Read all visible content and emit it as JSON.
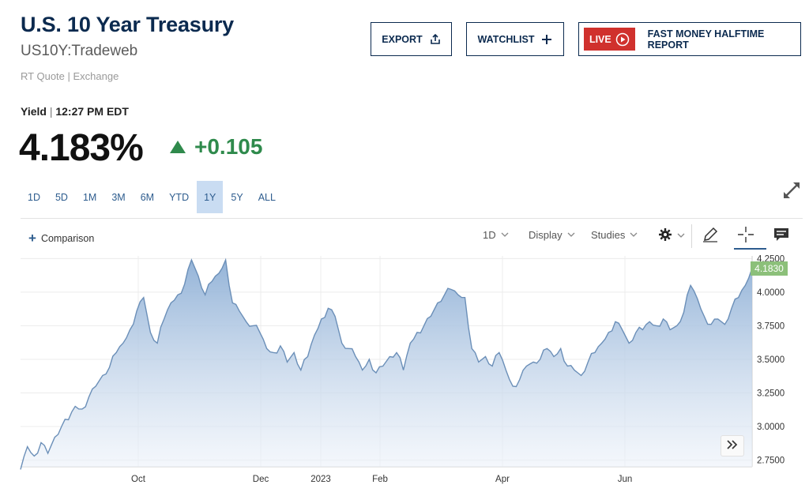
{
  "header": {
    "title": "U.S. 10 Year Treasury",
    "symbol": "US10Y:Tradeweb",
    "quote_source": "RT Quote | Exchange"
  },
  "actions": {
    "export_label": "EXPORT",
    "watchlist_label": "WATCHLIST",
    "live_label": "LIVE",
    "live_show": "FAST MONEY HALFTIME REPORT",
    "live_color": "#d0312d"
  },
  "quote": {
    "yield_label": "Yield",
    "time": "12:27 PM EDT",
    "price": "4.183%",
    "change": "+0.105",
    "change_color": "#2f8a4c"
  },
  "ranges": [
    {
      "label": "1D",
      "active": false
    },
    {
      "label": "5D",
      "active": false
    },
    {
      "label": "1M",
      "active": false
    },
    {
      "label": "3M",
      "active": false
    },
    {
      "label": "6M",
      "active": false
    },
    {
      "label": "YTD",
      "active": false
    },
    {
      "label": "1Y",
      "active": true
    },
    {
      "label": "5Y",
      "active": false
    },
    {
      "label": "ALL",
      "active": false
    }
  ],
  "toolbar": {
    "comparison_label": "Comparison",
    "interval_label": "1D",
    "display_label": "Display",
    "studies_label": "Studies",
    "icons": [
      "gear-icon",
      "pencil-icon",
      "crosshair-icon",
      "comment-icon",
      "expand-icon",
      "chevron-double-right-icon"
    ]
  },
  "chart_data": {
    "type": "area",
    "x_ticks": [
      "Oct",
      "Dec",
      "2023",
      "Feb",
      "Apr",
      "Jun"
    ],
    "y_ticks": [
      "4.2500",
      "4.0000",
      "3.7500",
      "3.5000",
      "3.2500",
      "3.0000",
      "2.7500"
    ],
    "ylim": [
      2.7,
      4.27
    ],
    "last_value_label": "4.1830",
    "last_value": 4.183,
    "line_color": "#6b8fb8",
    "badge_color": "#8cc07a",
    "grid": true,
    "values": [
      2.68,
      2.85,
      2.78,
      2.88,
      2.8,
      2.92,
      3.0,
      3.05,
      3.15,
      3.13,
      3.22,
      3.3,
      3.38,
      3.44,
      3.55,
      3.62,
      3.72,
      3.86,
      3.96,
      3.7,
      3.62,
      3.8,
      3.92,
      3.98,
      4.06,
      4.24,
      4.12,
      3.98,
      4.08,
      4.14,
      4.24,
      3.92,
      3.86,
      3.78,
      3.75,
      3.7,
      3.58,
      3.55,
      3.6,
      3.48,
      3.55,
      3.42,
      3.52,
      3.68,
      3.8,
      3.88,
      3.82,
      3.62,
      3.58,
      3.52,
      3.42,
      3.5,
      3.4,
      3.45,
      3.52,
      3.55,
      3.42,
      3.62,
      3.7,
      3.75,
      3.82,
      3.92,
      3.98,
      4.02,
      3.98,
      3.96,
      3.58,
      3.48,
      3.52,
      3.45,
      3.55,
      3.42,
      3.3,
      3.35,
      3.45,
      3.48,
      3.5,
      3.58,
      3.52,
      3.58,
      3.45,
      3.42,
      3.38,
      3.48,
      3.55,
      3.62,
      3.7,
      3.78,
      3.72,
      3.62,
      3.7,
      3.72,
      3.78,
      3.75,
      3.8,
      3.72,
      3.75,
      3.85,
      4.05,
      3.95,
      3.82,
      3.76,
      3.8,
      3.76,
      3.88,
      3.96,
      4.05,
      4.18
    ]
  }
}
